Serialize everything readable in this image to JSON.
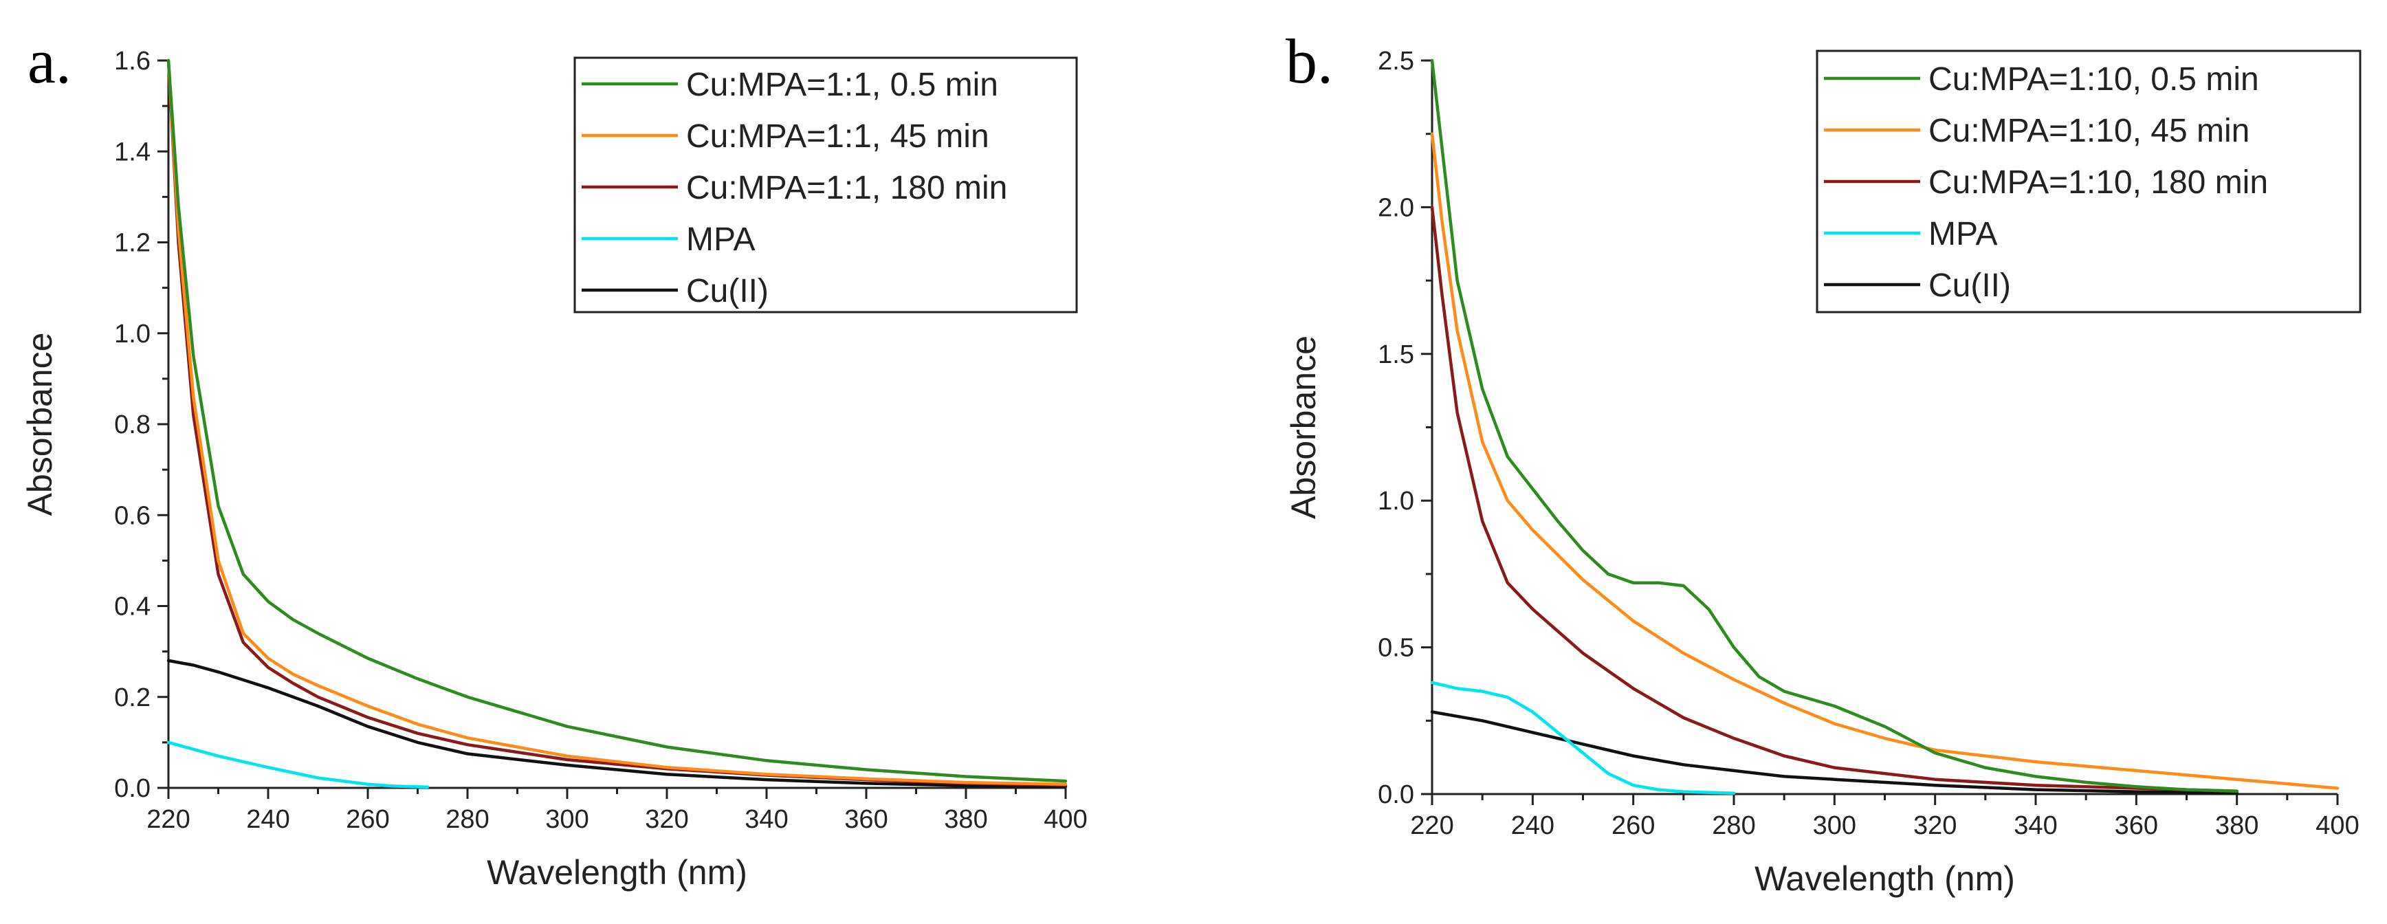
{
  "colors": {
    "green": "#2e8b1f",
    "orange": "#ff8c1a",
    "darkred": "#8b1a1a",
    "cyan": "#00e5ee",
    "black": "#111111"
  },
  "chart_data": [
    {
      "type": "line",
      "panel_label": "a.",
      "xlabel": "Wavelength (nm)",
      "ylabel": "Absorbance",
      "xlim": [
        220,
        400
      ],
      "ylim": [
        0,
        1.6
      ],
      "x_ticks": [
        220,
        240,
        260,
        280,
        300,
        320,
        340,
        360,
        380,
        400
      ],
      "y_ticks": [
        0.0,
        0.2,
        0.4,
        0.6,
        0.8,
        1.0,
        1.2,
        1.4,
        1.6
      ],
      "y_tick_labels": [
        "0.0",
        "0.2",
        "0.4",
        "0.6",
        "0.8",
        "1.0",
        "1.2",
        "1.4",
        "1.6"
      ],
      "legend_position": "top-right",
      "series": [
        {
          "name": "Cu:MPA=1:1, 0.5 min",
          "color_key": "green",
          "x": [
            220,
            222,
            225,
            230,
            235,
            240,
            245,
            250,
            260,
            270,
            280,
            300,
            320,
            340,
            360,
            380,
            400
          ],
          "y": [
            1.6,
            1.28,
            0.95,
            0.62,
            0.47,
            0.41,
            0.37,
            0.34,
            0.285,
            0.24,
            0.2,
            0.135,
            0.09,
            0.06,
            0.04,
            0.025,
            0.015
          ]
        },
        {
          "name": "Cu:MPA=1:1, 45 min",
          "color_key": "orange",
          "x": [
            220,
            222,
            225,
            230,
            235,
            240,
            245,
            250,
            260,
            270,
            280,
            300,
            320,
            340,
            360,
            380,
            400
          ],
          "y": [
            1.6,
            1.23,
            0.86,
            0.5,
            0.34,
            0.285,
            0.25,
            0.225,
            0.18,
            0.14,
            0.11,
            0.07,
            0.045,
            0.03,
            0.02,
            0.012,
            0.008
          ]
        },
        {
          "name": "Cu:MPA=1:1, 180 min",
          "color_key": "darkred",
          "x": [
            220,
            222,
            225,
            230,
            235,
            240,
            245,
            250,
            260,
            270,
            280,
            300,
            320,
            340,
            360,
            380,
            400
          ],
          "y": [
            1.6,
            1.2,
            0.82,
            0.47,
            0.32,
            0.265,
            0.23,
            0.2,
            0.155,
            0.12,
            0.095,
            0.062,
            0.042,
            0.028,
            0.018,
            0.01,
            0.006
          ]
        },
        {
          "name": "MPA",
          "color_key": "cyan",
          "x": [
            220,
            230,
            240,
            250,
            260,
            265,
            272
          ],
          "y": [
            0.1,
            0.07,
            0.045,
            0.022,
            0.008,
            0.004,
            0.002
          ]
        },
        {
          "name": "Cu(II)",
          "color_key": "black",
          "x": [
            220,
            225,
            230,
            240,
            250,
            260,
            270,
            280,
            300,
            320,
            340,
            360,
            380,
            400
          ],
          "y": [
            0.28,
            0.27,
            0.255,
            0.22,
            0.18,
            0.135,
            0.1,
            0.075,
            0.05,
            0.03,
            0.018,
            0.01,
            0.005,
            0.003
          ]
        }
      ]
    },
    {
      "type": "line",
      "panel_label": "b.",
      "xlabel": "Wavelength (nm)",
      "ylabel": "Absorbance",
      "xlim": [
        220,
        400
      ],
      "ylim": [
        0,
        2.5
      ],
      "x_ticks": [
        220,
        240,
        260,
        280,
        300,
        320,
        340,
        360,
        380,
        400
      ],
      "y_ticks": [
        0.0,
        0.5,
        1.0,
        1.5,
        2.0,
        2.5
      ],
      "y_tick_labels": [
        "0.0",
        "0.5",
        "1.0",
        "1.5",
        "2.0",
        "2.5"
      ],
      "legend_position": "top-right",
      "series": [
        {
          "name": "Cu:MPA=1:10, 0.5 min",
          "color_key": "green",
          "x": [
            220,
            222,
            225,
            230,
            235,
            240,
            245,
            250,
            255,
            260,
            265,
            270,
            275,
            280,
            285,
            290,
            300,
            310,
            320,
            330,
            340,
            350,
            360,
            370,
            380
          ],
          "y": [
            2.5,
            2.2,
            1.75,
            1.38,
            1.15,
            1.04,
            0.93,
            0.83,
            0.75,
            0.72,
            0.72,
            0.71,
            0.63,
            0.5,
            0.4,
            0.35,
            0.3,
            0.23,
            0.14,
            0.09,
            0.06,
            0.04,
            0.025,
            0.015,
            0.01
          ]
        },
        {
          "name": "Cu:MPA=1:10, 45 min",
          "color_key": "orange",
          "x": [
            220,
            222,
            225,
            230,
            235,
            240,
            250,
            260,
            270,
            280,
            290,
            300,
            310,
            320,
            330,
            340,
            360,
            380,
            400
          ],
          "y": [
            2.25,
            1.95,
            1.58,
            1.2,
            1.0,
            0.9,
            0.73,
            0.59,
            0.48,
            0.39,
            0.31,
            0.24,
            0.19,
            0.15,
            0.13,
            0.11,
            0.08,
            0.05,
            0.02
          ]
        },
        {
          "name": "Cu:MPA=1:10, 180 min",
          "color_key": "darkred",
          "x": [
            220,
            222,
            225,
            230,
            235,
            240,
            250,
            260,
            270,
            280,
            290,
            300,
            320,
            340,
            360,
            380
          ],
          "y": [
            2.0,
            1.7,
            1.3,
            0.93,
            0.72,
            0.63,
            0.48,
            0.36,
            0.26,
            0.19,
            0.13,
            0.09,
            0.05,
            0.03,
            0.02,
            0.01
          ]
        },
        {
          "name": "MPA",
          "color_key": "cyan",
          "x": [
            220,
            225,
            230,
            235,
            240,
            245,
            250,
            255,
            260,
            265,
            270,
            280
          ],
          "y": [
            0.38,
            0.36,
            0.35,
            0.33,
            0.28,
            0.21,
            0.14,
            0.07,
            0.03,
            0.015,
            0.008,
            0.003
          ]
        },
        {
          "name": "Cu(II)",
          "color_key": "black",
          "x": [
            220,
            230,
            240,
            250,
            260,
            270,
            280,
            290,
            300,
            320,
            340,
            360,
            380
          ],
          "y": [
            0.28,
            0.25,
            0.21,
            0.17,
            0.13,
            0.1,
            0.08,
            0.06,
            0.05,
            0.03,
            0.015,
            0.008,
            0.004
          ]
        }
      ]
    }
  ]
}
